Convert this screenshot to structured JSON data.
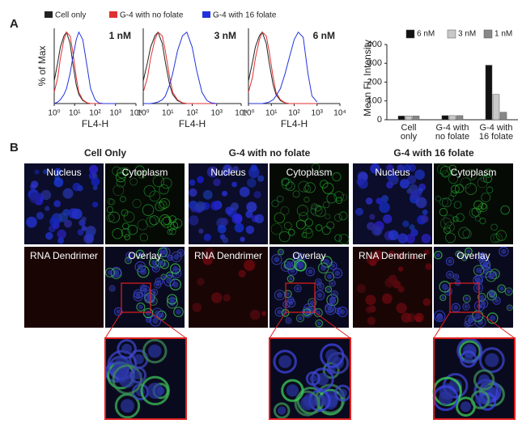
{
  "panel_labels": [
    "A",
    "B"
  ],
  "legend": [
    {
      "name": "Cell only",
      "color": "#222222"
    },
    {
      "name": "G-4 with no folate",
      "color": "#e03030"
    },
    {
      "name": "G-4 with 16 folate",
      "color": "#2233dd"
    }
  ],
  "chart_data": [
    {
      "type": "line",
      "annotation": "1 nM",
      "ylabel": "% of Max",
      "xlabel": "FL4-H",
      "log_x": true,
      "x": [
        1,
        1.5,
        2,
        3,
        4,
        6,
        8,
        12,
        16,
        25,
        40,
        60,
        100,
        150,
        250,
        400,
        600,
        1000
      ],
      "xlim": [
        1,
        10000
      ],
      "xticks": [
        {
          "value": 1,
          "label": "10⁰"
        },
        {
          "value": 10,
          "label": "10¹"
        },
        {
          "value": 100,
          "label": "10²"
        },
        {
          "value": 1000,
          "label": "10³"
        },
        {
          "value": 10000,
          "label": "10⁴"
        }
      ],
      "ylim": [
        0,
        100
      ],
      "series": [
        {
          "color": "#222222",
          "values": [
            30,
            55,
            75,
            90,
            95,
            80,
            55,
            25,
            12,
            4,
            1,
            0,
            0,
            0,
            0,
            0,
            0,
            0
          ]
        },
        {
          "color": "#e03030",
          "values": [
            15,
            35,
            60,
            85,
            95,
            90,
            70,
            35,
            15,
            5,
            1,
            0,
            0,
            0,
            0,
            0,
            0,
            0
          ]
        },
        {
          "color": "#2233dd",
          "values": [
            0,
            2,
            5,
            12,
            20,
            40,
            60,
            85,
            95,
            85,
            50,
            20,
            5,
            1,
            0,
            0,
            0,
            0
          ]
        }
      ]
    },
    {
      "type": "line",
      "annotation": "3 nM",
      "xlabel": "FL4-H",
      "log_x": true,
      "x": [
        1,
        1.5,
        2,
        3,
        4,
        6,
        8,
        12,
        16,
        25,
        40,
        60,
        100,
        150,
        250,
        400,
        600,
        1000
      ],
      "xlim": [
        1,
        10000
      ],
      "xticks": [
        {
          "value": 1,
          "label": "10⁰"
        },
        {
          "value": 10,
          "label": "10¹"
        },
        {
          "value": 100,
          "label": "10²"
        },
        {
          "value": 1000,
          "label": "10³"
        },
        {
          "value": 10000,
          "label": "10⁴"
        }
      ],
      "ylim": [
        0,
        100
      ],
      "series": [
        {
          "color": "#222222",
          "values": [
            30,
            55,
            75,
            90,
            95,
            80,
            55,
            25,
            12,
            4,
            1,
            0,
            0,
            0,
            0,
            0,
            0,
            0
          ]
        },
        {
          "color": "#e03030",
          "values": [
            15,
            35,
            60,
            85,
            95,
            90,
            70,
            35,
            15,
            5,
            1,
            0,
            0,
            0,
            0,
            0,
            0,
            0
          ]
        },
        {
          "color": "#2233dd",
          "values": [
            0,
            0,
            0,
            1,
            2,
            5,
            10,
            25,
            40,
            70,
            90,
            95,
            75,
            45,
            15,
            4,
            1,
            0
          ]
        }
      ]
    },
    {
      "type": "line",
      "annotation": "6 nM",
      "xlabel": "FL4-H",
      "log_x": true,
      "x": [
        1,
        1.5,
        2,
        3,
        4,
        6,
        8,
        12,
        16,
        25,
        40,
        60,
        100,
        150,
        250,
        400,
        600,
        1000
      ],
      "xlim": [
        1,
        10000
      ],
      "xticks": [
        {
          "value": 1,
          "label": "10⁰"
        },
        {
          "value": 10,
          "label": "10¹"
        },
        {
          "value": 100,
          "label": "10²"
        },
        {
          "value": 1000,
          "label": "10³"
        },
        {
          "value": 10000,
          "label": "10⁴"
        }
      ],
      "ylim": [
        0,
        100
      ],
      "series": [
        {
          "color": "#222222",
          "values": [
            30,
            55,
            75,
            90,
            95,
            80,
            55,
            25,
            12,
            4,
            1,
            0,
            0,
            0,
            0,
            0,
            0,
            0
          ]
        },
        {
          "color": "#e03030",
          "values": [
            15,
            35,
            60,
            85,
            95,
            90,
            70,
            35,
            15,
            5,
            1,
            0,
            0,
            0,
            0,
            0,
            0,
            0
          ]
        },
        {
          "color": "#2233dd",
          "values": [
            0,
            0,
            0,
            0,
            0,
            1,
            2,
            5,
            10,
            20,
            40,
            60,
            85,
            95,
            88,
            40,
            10,
            2
          ]
        }
      ]
    },
    {
      "type": "bar",
      "ylabel": "Mean Fl. Intensity",
      "categories": [
        "Cell only",
        "G-4 with no folate",
        "G-4 with 16 folate"
      ],
      "series": [
        {
          "name": "6 nM",
          "color": "#111111",
          "values": [
            20,
            22,
            290
          ]
        },
        {
          "name": "3 nM",
          "color": "#c8c8c8",
          "values": [
            20,
            22,
            135
          ]
        },
        {
          "name": "1 nM",
          "color": "#888888",
          "values": [
            20,
            22,
            40
          ]
        }
      ],
      "ylim": [
        0,
        400
      ],
      "yticks": [
        0,
        100,
        200,
        300,
        400
      ]
    }
  ],
  "microscopy": {
    "groups": [
      "Cell Only",
      "G-4 with no folate",
      "G-4 with 16 folate"
    ],
    "channels": [
      "Nucleus",
      "Cytoplasm",
      "RNA Dendrimer",
      "Overlay"
    ]
  }
}
